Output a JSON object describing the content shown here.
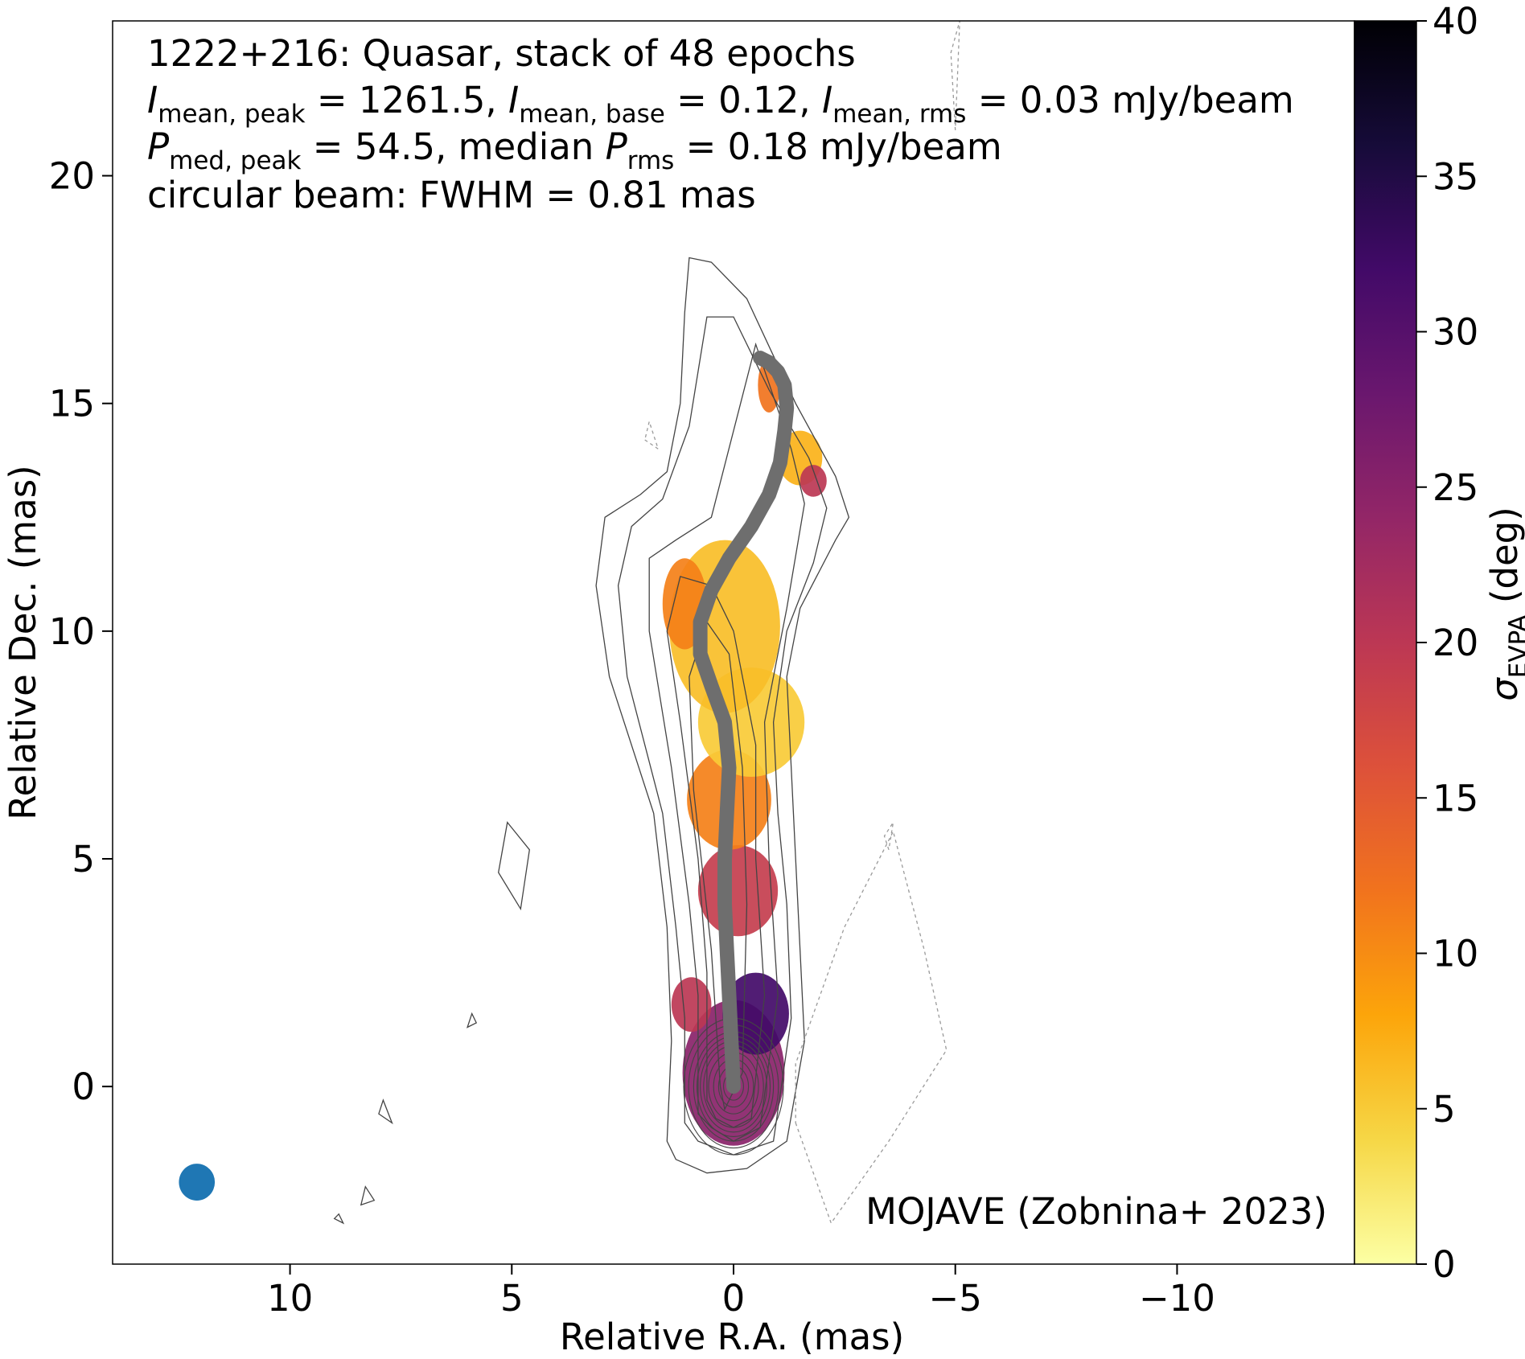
{
  "chart_data": {
    "type": "heatmap",
    "annotations": {
      "line1": "1222+216: Quasar, stack of 48 epochs",
      "line2": {
        "a_sym": "I",
        "a_sub": "mean, peak",
        "a_val": " = 1261.5, ",
        "b_sym": "I",
        "b_sub": "mean, base",
        "b_val": " = 0.12, ",
        "c_sym": "I",
        "c_sub": "mean, rms",
        "c_val": " = 0.03 mJy/beam"
      },
      "line3": {
        "a_sym": "P",
        "a_sub": "med, peak",
        "a_val": " = 54.5, median ",
        "b_sym": "P",
        "b_sub": "rms",
        "b_val": " = 0.18 mJy/beam"
      },
      "line4": "circular beam: FWHM = 0.81 mas",
      "credit": "MOJAVE (Zobnina+ 2023)"
    },
    "xlabel": "Relative R.A. (mas)",
    "ylabel": "Relative Dec. (mas)",
    "xlim": [
      14,
      -14
    ],
    "ylim": [
      -3.9,
      23.4
    ],
    "xticks": [
      10,
      5,
      0,
      -5,
      -10
    ],
    "xtick_labels": [
      "10",
      "5",
      "0",
      "−5",
      "−10"
    ],
    "yticks": [
      0,
      5,
      10,
      15,
      20
    ],
    "ytick_labels": [
      "0",
      "5",
      "10",
      "15",
      "20"
    ],
    "colorbar": {
      "label_sym": "σ",
      "label_sub": "EVPA",
      "label_unit": " (deg)",
      "range": [
        0,
        40
      ],
      "ticks": [
        0,
        5,
        10,
        15,
        20,
        25,
        30,
        35,
        40
      ],
      "tick_labels": [
        "0",
        "5",
        "10",
        "15",
        "20",
        "25",
        "30",
        "35",
        "40"
      ],
      "colormap": "inferno_r",
      "stops": [
        "#fcffa4",
        "#f6d746",
        "#fca50a",
        "#f1731d",
        "#dd513a",
        "#bc3754",
        "#932667",
        "#6a176e",
        "#420a68",
        "#160b39",
        "#000004"
      ]
    },
    "beam": {
      "ra": 12.1,
      "dec": -2.1,
      "fwhm_mas": 0.81,
      "color": "#1f77b4"
    },
    "ridge_line": {
      "color": "#6e6e6e",
      "ra": [
        0.0,
        0.05,
        0.1,
        0.15,
        0.2,
        0.2,
        0.15,
        0.1,
        0.2,
        0.5,
        0.75,
        0.75,
        0.5,
        0.1,
        -0.4,
        -0.8,
        -1.05,
        -1.15,
        -1.2,
        -1.15,
        -1.0,
        -0.8,
        -0.6
      ],
      "dec": [
        0.0,
        1.0,
        2.0,
        3.0,
        4.0,
        5.0,
        6.0,
        7.0,
        8.0,
        8.8,
        9.5,
        10.2,
        10.9,
        11.6,
        12.3,
        13.0,
        13.7,
        14.4,
        14.9,
        15.4,
        15.7,
        15.9,
        16.0
      ]
    },
    "polarization_regions": [
      {
        "ra": 0.0,
        "dec": 0.3,
        "rx": 1.15,
        "ry": 1.6,
        "sigma": 25
      },
      {
        "ra": -0.5,
        "dec": 1.6,
        "rx": 0.75,
        "ry": 0.9,
        "sigma": 32
      },
      {
        "ra": 0.95,
        "dec": 1.8,
        "rx": 0.45,
        "ry": 0.6,
        "sigma": 20
      },
      {
        "ra": -0.1,
        "dec": 4.3,
        "rx": 0.9,
        "ry": 1.0,
        "sigma": 19
      },
      {
        "ra": 0.1,
        "dec": 6.3,
        "rx": 0.95,
        "ry": 1.1,
        "sigma": 11
      },
      {
        "ra": -0.4,
        "dec": 8.0,
        "rx": 1.2,
        "ry": 1.2,
        "sigma": 5
      },
      {
        "ra": 0.2,
        "dec": 10.1,
        "rx": 1.25,
        "ry": 1.9,
        "sigma": 6
      },
      {
        "ra": 1.1,
        "dec": 10.6,
        "rx": 0.5,
        "ry": 1.0,
        "sigma": 11
      },
      {
        "ra": -1.5,
        "dec": 13.8,
        "rx": 0.5,
        "ry": 0.6,
        "sigma": 7
      },
      {
        "ra": -0.8,
        "dec": 15.4,
        "rx": 0.25,
        "ry": 0.6,
        "sigma": 12
      },
      {
        "ra": -1.8,
        "dec": 13.3,
        "rx": 0.3,
        "ry": 0.35,
        "sigma": 20
      }
    ],
    "contours": {
      "solid_color": "#444444",
      "dashed_color": "#9a9a9a",
      "core": {
        "ra": 0.0,
        "dec": 0.0,
        "nested_rx": [
          0.15,
          0.3,
          0.45,
          0.6,
          0.75,
          0.9,
          1.0,
          1.1,
          1.2,
          1.35,
          1.5
        ]
      },
      "outer_levels": [
        {
          "ra": [
            1.5,
            1.4,
            1.5,
            1.8,
            2.8,
            3.1,
            2.9,
            2.1,
            1.5,
            1.2,
            1.1,
            1.0,
            0.5,
            -0.3,
            -1.4,
            -2.3,
            -2.6,
            -2.3,
            -1.5,
            -1.2,
            -1.3,
            -1.4,
            -1.5,
            -1.6,
            -1.2,
            -0.3,
            0.6,
            1.3
          ],
          "dec": [
            -1.2,
            1.0,
            3.5,
            6.0,
            9.0,
            11.0,
            12.5,
            13.0,
            13.5,
            15.0,
            17.0,
            18.2,
            18.1,
            17.3,
            15.0,
            13.4,
            12.5,
            12.0,
            10.5,
            9.0,
            7.0,
            5.0,
            3.0,
            1.0,
            -1.2,
            -1.8,
            -1.9,
            -1.6
          ]
        },
        {
          "ra": [
            1.1,
            1.1,
            1.3,
            1.6,
            2.4,
            2.6,
            2.3,
            1.6,
            1.0,
            0.6,
            0.0,
            -0.8,
            -1.7,
            -2.1,
            -1.8,
            -1.2,
            -0.9,
            -1.0,
            -1.2,
            -1.3,
            -0.9,
            0.0,
            0.8
          ],
          "dec": [
            -0.8,
            1.5,
            3.5,
            6.0,
            9.0,
            11.0,
            12.3,
            12.9,
            14.5,
            16.9,
            16.9,
            15.3,
            13.8,
            12.7,
            11.5,
            10.0,
            8.0,
            6.0,
            4.0,
            1.5,
            -1.2,
            -1.5,
            -1.2
          ]
        },
        {
          "ra": [
            0.8,
            0.8,
            1.0,
            1.4,
            1.9,
            1.9,
            1.3,
            0.5,
            -0.5,
            -1.3,
            -1.6,
            -1.2,
            -0.7,
            -0.8,
            -1.0,
            -0.6,
            0.0,
            0.5
          ],
          "dec": [
            -0.6,
            2.0,
            4.0,
            7.0,
            10.0,
            11.6,
            12.0,
            12.5,
            16.3,
            14.0,
            12.8,
            10.5,
            8.0,
            5.0,
            2.0,
            -0.9,
            -1.2,
            -0.9
          ]
        },
        {
          "ra": [
            0.6,
            0.6,
            0.8,
            1.2,
            1.5,
            1.2,
            0.5,
            0.0,
            -0.5,
            -0.5,
            -0.7,
            -0.4,
            0.0,
            0.4
          ],
          "dec": [
            -0.3,
            2.5,
            5.0,
            8.0,
            10.0,
            11.2,
            11.0,
            10.0,
            7.5,
            5.0,
            2.0,
            -0.7,
            -0.9,
            -0.7
          ]
        },
        {
          "ra": [
            0.3,
            0.5,
            0.9,
            1.0,
            0.6,
            0.1,
            -0.2,
            -0.3,
            -0.2,
            0.2
          ],
          "dec": [
            0.0,
            3.0,
            6.5,
            9.0,
            10.2,
            9.5,
            7.0,
            4.0,
            0.3,
            -0.5
          ]
        }
      ],
      "solid_islands": [
        {
          "ra": [
            5.1,
            4.6,
            4.8,
            5.3,
            5.1
          ],
          "dec": [
            5.8,
            5.2,
            3.9,
            4.7,
            5.8
          ]
        },
        {
          "ra": [
            8.0,
            7.7,
            7.9,
            8.0
          ],
          "dec": [
            -0.6,
            -0.8,
            -0.3,
            -0.6
          ]
        },
        {
          "ra": [
            6.0,
            5.8,
            5.9,
            6.0
          ],
          "dec": [
            1.3,
            1.4,
            1.6,
            1.3
          ]
        },
        {
          "ra": [
            9.0,
            8.8,
            8.9,
            9.0
          ],
          "dec": [
            -2.9,
            -3.0,
            -2.8,
            -2.9
          ]
        },
        {
          "ra": [
            8.4,
            8.1,
            8.3,
            8.4
          ],
          "dec": [
            -2.6,
            -2.5,
            -2.2,
            -2.6
          ]
        }
      ],
      "dashed_islands": [
        {
          "ra": [
            -1.4,
            -2.2,
            -3.5,
            -4.8,
            -4.3,
            -3.6,
            -2.5,
            -1.4
          ],
          "dec": [
            -0.8,
            -3.0,
            -1.2,
            0.8,
            3.0,
            5.6,
            3.5,
            0.5
          ]
        },
        {
          "ra": [
            2.0,
            1.7,
            1.9,
            2.0
          ],
          "dec": [
            14.2,
            14.0,
            14.6,
            14.2
          ]
        },
        {
          "ra": [
            -3.5,
            -3.4,
            -3.6,
            -3.5
          ],
          "dec": [
            5.2,
            5.5,
            5.8,
            5.2
          ]
        },
        {
          "ra": [
            -5.0,
            -4.9,
            -5.1,
            -5.0
          ],
          "dec": [
            21.0,
            22.7,
            23.4,
            21.0
          ]
        }
      ]
    }
  }
}
